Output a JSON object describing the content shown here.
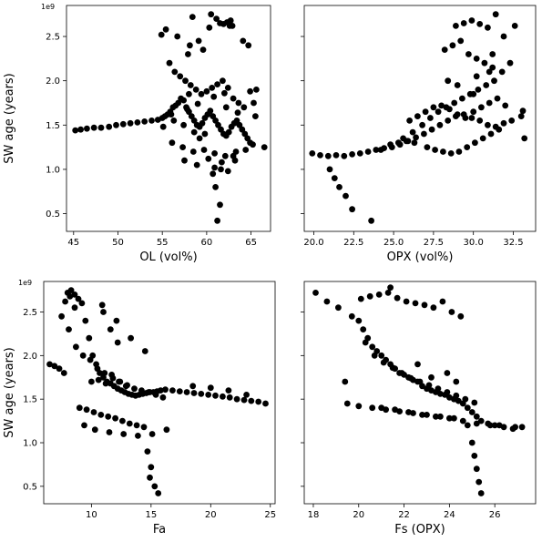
{
  "chart_data": [
    {
      "type": "scatter",
      "panel": "top-left",
      "xlabel": "OL (vol%)",
      "ylabel": "SW age (years)",
      "y_offset_label": "1e9",
      "xlim": [
        44.2,
        67.2
      ],
      "ylim": [
        0.3,
        2.85
      ],
      "xticks": [
        45,
        50,
        55,
        60,
        65
      ],
      "xtick_labels": [
        "45",
        "50",
        "55",
        "60",
        "65"
      ],
      "yticks": [
        0.5,
        1.0,
        1.5,
        2.0,
        2.5
      ],
      "ytick_labels": [
        "0.5",
        "1.0",
        "1.5",
        "2.0",
        "2.5"
      ],
      "marker_color": "#000000",
      "x": [
        45.2,
        45.8,
        46.5,
        47.3,
        48.1,
        49.0,
        49.8,
        50.6,
        51.4,
        52.2,
        53.0,
        53.8,
        54.5,
        55.0,
        55.3,
        55.6,
        55.9,
        56.2,
        56.5,
        56.8,
        57.1,
        57.4,
        57.7,
        58.0,
        58.3,
        58.6,
        58.9,
        59.2,
        59.5,
        59.8,
        60.1,
        60.4,
        60.7,
        61.0,
        61.3,
        61.6,
        61.9,
        62.2,
        62.5,
        62.8,
        63.1,
        63.4,
        63.7,
        64.0,
        64.3,
        64.6,
        64.9,
        65.2,
        65.6,
        66.5,
        55.8,
        56.4,
        57.0,
        57.6,
        58.2,
        58.8,
        59.4,
        60.0,
        60.6,
        61.2,
        61.8,
        62.4,
        63.0,
        63.6,
        64.2,
        56.1,
        57.3,
        58.5,
        59.7,
        60.9,
        62.1,
        63.3,
        57.9,
        59.1,
        60.3,
        61.5,
        62.7,
        55.4,
        56.7,
        58.1,
        59.6,
        61.1,
        62.6,
        64.1,
        57.5,
        58.9,
        60.2,
        61.7,
        63.0,
        64.4,
        56.0,
        57.8,
        59.0,
        60.8,
        62.0,
        63.5,
        58.4,
        60.5,
        61.9,
        62.3,
        62.9,
        61.2,
        61.5,
        61.0,
        60.7,
        59.8,
        59.2,
        58.6,
        57.4,
        56.3,
        55.1,
        60.9,
        61.6,
        62.4,
        63.2,
        64.7,
        65.5,
        64.9,
        65.3,
        62.2,
        58.0,
        54.9
      ],
      "y": [
        1.44,
        1.45,
        1.46,
        1.47,
        1.47,
        1.48,
        1.5,
        1.51,
        1.52,
        1.53,
        1.54,
        1.55,
        1.56,
        1.58,
        1.6,
        1.62,
        1.65,
        1.7,
        1.72,
        1.75,
        1.8,
        1.78,
        1.7,
        1.65,
        1.6,
        1.55,
        1.5,
        1.48,
        1.52,
        1.58,
        1.62,
        1.66,
        1.6,
        1.55,
        1.5,
        1.45,
        1.4,
        1.38,
        1.42,
        1.48,
        1.52,
        1.55,
        1.5,
        1.45,
        1.4,
        1.35,
        1.3,
        1.28,
        1.9,
        1.25,
        2.2,
        2.1,
        2.05,
        2.0,
        1.95,
        1.9,
        1.85,
        1.88,
        1.92,
        1.96,
        2.0,
        1.92,
        1.8,
        1.75,
        1.7,
        1.3,
        1.25,
        1.2,
        1.22,
        1.18,
        1.15,
        1.2,
        2.3,
        2.45,
        2.6,
        2.65,
        2.68,
        2.58,
        2.5,
        2.4,
        2.35,
        2.7,
        2.62,
        2.45,
        1.1,
        1.05,
        1.12,
        1.08,
        1.15,
        1.22,
        1.62,
        1.68,
        1.74,
        1.82,
        1.86,
        1.64,
        2.72,
        2.75,
        2.64,
        2.66,
        2.62,
        0.42,
        0.6,
        0.8,
        0.95,
        1.4,
        1.35,
        1.42,
        1.5,
        1.55,
        1.48,
        1.02,
        1.0,
        0.98,
        1.1,
        2.4,
        1.6,
        1.88,
        1.75,
        1.7,
        1.85,
        2.52
      ]
    },
    {
      "type": "scatter",
      "panel": "top-right",
      "xlabel": "OPX (vol%)",
      "ylabel": "",
      "y_offset_label": "",
      "xlim": [
        19.4,
        33.9
      ],
      "ylim": [
        0.3,
        2.85
      ],
      "xticks": [
        20.0,
        22.5,
        25.0,
        27.5,
        30.0,
        32.5
      ],
      "xtick_labels": [
        "20.0",
        "22.5",
        "25.0",
        "27.5",
        "30.0",
        "32.5"
      ],
      "yticks": [
        0.5,
        1.0,
        1.5,
        2.0,
        2.5
      ],
      "ytick_labels": [],
      "marker_color": "#000000",
      "x": [
        19.9,
        20.4,
        20.9,
        21.4,
        21.9,
        22.4,
        22.9,
        23.4,
        23.9,
        24.4,
        24.9,
        25.4,
        25.9,
        26.4,
        26.9,
        27.4,
        27.9,
        28.4,
        28.9,
        29.4,
        29.9,
        30.4,
        30.9,
        31.4,
        31.9,
        32.4,
        33.0,
        33.2,
        21.0,
        21.3,
        21.6,
        22.0,
        22.4,
        23.6,
        25.6,
        26.2,
        26.8,
        27.3,
        27.8,
        28.3,
        28.8,
        29.3,
        29.8,
        30.3,
        30.8,
        31.3,
        31.8,
        32.3,
        27.1,
        27.6,
        28.1,
        28.6,
        29.1,
        29.6,
        30.1,
        30.6,
        31.1,
        31.6,
        28.2,
        28.7,
        29.2,
        29.7,
        30.2,
        30.7,
        31.2,
        26.0,
        26.5,
        27.0,
        27.5,
        28.0,
        28.5,
        29.0,
        29.5,
        30.0,
        30.5,
        31.0,
        31.5,
        32.0,
        24.2,
        24.8,
        25.3,
        25.8,
        26.3,
        28.9,
        29.4,
        29.9,
        30.4,
        30.9,
        31.4,
        31.9,
        32.6,
        33.1,
        28.4,
        30.0,
        31.0,
        29.0,
        30.2,
        31.2
      ],
      "y": [
        1.18,
        1.16,
        1.15,
        1.16,
        1.15,
        1.17,
        1.18,
        1.2,
        1.22,
        1.24,
        1.25,
        1.28,
        1.32,
        1.36,
        1.4,
        1.45,
        1.5,
        1.55,
        1.6,
        1.62,
        1.58,
        1.55,
        1.5,
        1.48,
        1.52,
        1.55,
        1.6,
        1.35,
        1.0,
        0.9,
        0.8,
        0.7,
        0.55,
        0.42,
        1.35,
        1.42,
        1.5,
        1.58,
        1.65,
        1.7,
        1.75,
        1.8,
        1.85,
        1.9,
        1.95,
        2.0,
        2.1,
        2.2,
        1.25,
        1.22,
        1.2,
        1.18,
        1.2,
        1.25,
        1.3,
        1.35,
        1.4,
        1.45,
        2.35,
        2.4,
        2.45,
        2.3,
        2.25,
        2.2,
        2.3,
        1.55,
        1.6,
        1.65,
        1.7,
        1.72,
        1.68,
        1.62,
        1.58,
        1.65,
        1.7,
        1.75,
        1.8,
        1.72,
        1.22,
        1.28,
        1.3,
        1.32,
        1.3,
        2.62,
        2.65,
        2.68,
        2.64,
        2.6,
        2.75,
        2.5,
        2.62,
        1.66,
        2.0,
        1.85,
        2.1,
        1.95,
        2.05,
        2.15
      ]
    },
    {
      "type": "scatter",
      "panel": "bottom-left",
      "xlabel": "Fa",
      "ylabel": "SW age (years)",
      "y_offset_label": "1e9",
      "xlim": [
        6.0,
        25.4
      ],
      "ylim": [
        0.3,
        2.85
      ],
      "xticks": [
        10,
        15,
        20,
        25
      ],
      "xtick_labels": [
        "10",
        "15",
        "20",
        "25"
      ],
      "yticks": [
        0.5,
        1.0,
        1.5,
        2.0,
        2.5
      ],
      "ytick_labels": [
        "0.5",
        "1.0",
        "1.5",
        "2.0",
        "2.5"
      ],
      "marker_color": "#000000",
      "x": [
        6.5,
        6.9,
        7.3,
        7.7,
        8.0,
        8.3,
        8.6,
        8.9,
        9.2,
        9.5,
        9.8,
        10.1,
        10.4,
        10.7,
        11.0,
        11.3,
        11.6,
        11.9,
        12.2,
        12.5,
        12.8,
        13.1,
        13.4,
        13.7,
        14.0,
        14.3,
        14.6,
        14.9,
        15.2,
        15.5,
        15.8,
        16.2,
        16.8,
        17.4,
        18.0,
        18.6,
        19.2,
        19.8,
        20.4,
        21.0,
        21.6,
        22.2,
        22.8,
        23.4,
        24.0,
        24.6,
        7.5,
        8.1,
        8.7,
        9.3,
        9.9,
        10.5,
        11.1,
        11.7,
        12.3,
        12.9,
        9.0,
        9.6,
        10.2,
        10.8,
        11.4,
        12.0,
        12.6,
        13.2,
        13.8,
        14.4,
        10.0,
        10.6,
        11.2,
        11.8,
        12.4,
        13.0,
        13.6,
        14.2,
        14.8,
        15.4,
        16.0,
        9.4,
        10.3,
        11.5,
        12.7,
        13.9,
        15.1,
        16.3,
        11.0,
        12.1,
        13.3,
        14.5,
        15.0,
        14.7,
        14.9,
        15.3,
        15.6,
        7.8,
        8.2,
        8.6,
        10.9,
        11.6,
        12.2,
        18.5,
        20.0,
        21.5,
        23.0
      ],
      "y": [
        1.9,
        1.88,
        1.85,
        1.8,
        2.72,
        2.75,
        2.7,
        2.65,
        2.6,
        2.4,
        2.2,
        2.0,
        1.9,
        1.8,
        1.75,
        1.7,
        1.68,
        1.65,
        1.62,
        1.6,
        1.58,
        1.56,
        1.55,
        1.54,
        1.55,
        1.56,
        1.57,
        1.58,
        1.58,
        1.59,
        1.6,
        1.61,
        1.6,
        1.59,
        1.58,
        1.57,
        1.56,
        1.55,
        1.54,
        1.53,
        1.52,
        1.5,
        1.49,
        1.48,
        1.47,
        1.45,
        2.45,
        2.3,
        2.1,
        2.0,
        1.95,
        1.85,
        1.8,
        1.78,
        1.7,
        1.65,
        1.4,
        1.38,
        1.35,
        1.32,
        1.3,
        1.28,
        1.25,
        1.22,
        1.2,
        1.18,
        1.7,
        1.72,
        1.68,
        1.74,
        1.7,
        1.66,
        1.62,
        1.6,
        1.58,
        1.55,
        1.52,
        1.2,
        1.15,
        1.12,
        1.1,
        1.08,
        1.1,
        1.15,
        2.5,
        2.4,
        2.2,
        2.05,
        0.72,
        0.9,
        0.6,
        0.5,
        0.42,
        2.62,
        2.68,
        2.55,
        2.58,
        2.3,
        2.15,
        1.65,
        1.63,
        1.6,
        1.55
      ]
    },
    {
      "type": "scatter",
      "panel": "bottom-right",
      "xlabel": "Fs (OPX)",
      "ylabel": "",
      "y_offset_label": "",
      "xlim": [
        17.6,
        27.8
      ],
      "ylim": [
        0.3,
        2.85
      ],
      "xticks": [
        18,
        20,
        22,
        24,
        26
      ],
      "xtick_labels": [
        "18",
        "20",
        "22",
        "24",
        "26"
      ],
      "yticks": [
        0.5,
        1.0,
        1.5,
        2.0,
        2.5
      ],
      "ytick_labels": [],
      "marker_color": "#000000",
      "x": [
        18.1,
        18.6,
        19.1,
        19.4,
        19.7,
        20.0,
        20.2,
        20.4,
        20.6,
        20.8,
        21.0,
        21.2,
        21.4,
        21.6,
        21.8,
        22.0,
        22.2,
        22.4,
        22.6,
        22.8,
        23.0,
        23.2,
        23.4,
        23.6,
        23.8,
        24.0,
        24.2,
        24.4,
        24.6,
        24.8,
        25.0,
        25.2,
        25.4,
        25.7,
        26.0,
        26.4,
        26.8,
        27.2,
        20.1,
        20.5,
        20.9,
        21.3,
        21.7,
        22.1,
        22.5,
        22.9,
        23.3,
        23.7,
        24.1,
        24.5,
        20.3,
        20.7,
        21.1,
        21.5,
        21.9,
        22.3,
        22.7,
        23.1,
        23.5,
        23.9,
        24.3,
        24.7,
        25.1,
        21.0,
        21.6,
        22.2,
        22.8,
        23.4,
        24.0,
        24.6,
        25.2,
        25.8,
        19.5,
        20.0,
        20.6,
        21.2,
        21.8,
        22.4,
        23.0,
        23.6,
        24.2,
        24.8,
        25.0,
        25.1,
        25.2,
        25.3,
        25.4,
        23.9,
        24.3,
        21.4,
        22.6,
        23.2,
        26.2,
        26.9
      ],
      "y": [
        2.72,
        2.62,
        2.55,
        1.7,
        2.45,
        2.4,
        2.3,
        2.2,
        2.1,
        2.05,
        2.0,
        1.95,
        1.9,
        1.85,
        1.8,
        1.78,
        1.75,
        1.72,
        1.7,
        1.65,
        1.62,
        1.6,
        1.58,
        1.56,
        1.55,
        1.52,
        1.5,
        1.48,
        1.45,
        1.4,
        1.35,
        1.3,
        1.25,
        1.22,
        1.2,
        1.18,
        1.16,
        1.18,
        2.65,
        2.68,
        2.7,
        2.72,
        2.66,
        2.62,
        2.6,
        2.58,
        2.55,
        2.62,
        2.5,
        2.45,
        2.15,
        2.0,
        1.92,
        1.86,
        1.8,
        1.74,
        1.7,
        1.66,
        1.62,
        1.58,
        1.54,
        1.5,
        1.46,
        1.4,
        1.38,
        1.35,
        1.32,
        1.3,
        1.28,
        1.25,
        1.22,
        1.2,
        1.45,
        1.42,
        1.4,
        1.38,
        1.36,
        1.34,
        1.32,
        1.3,
        1.28,
        1.2,
        1.0,
        0.85,
        0.7,
        0.55,
        0.42,
        1.8,
        1.7,
        2.78,
        1.9,
        1.75,
        1.2,
        1.18
      ]
    }
  ]
}
